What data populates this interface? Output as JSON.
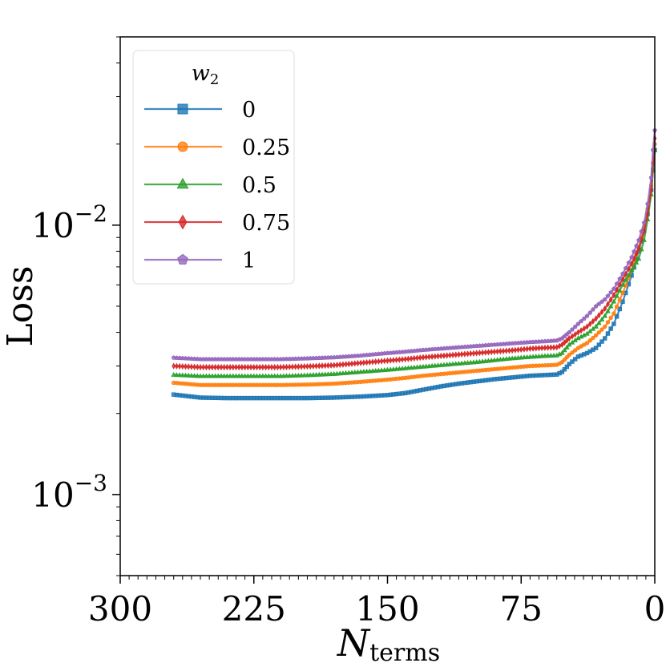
{
  "chart_data": {
    "type": "line",
    "title": "",
    "xlabel": "N",
    "xlabel_subscript": "terms",
    "ylabel": "Loss",
    "yscale": "log",
    "ylim": [
      0.0005,
      0.05
    ],
    "xlim": [
      300,
      0
    ],
    "x_inverted": true,
    "x_ticks": [
      {
        "value": 300,
        "label": "300"
      },
      {
        "value": 225,
        "label": "225"
      },
      {
        "value": 150,
        "label": "150"
      },
      {
        "value": 75,
        "label": "75"
      },
      {
        "value": 0,
        "label": "0"
      }
    ],
    "y_ticks": [
      {
        "value": 0.01,
        "base": "10",
        "exp": "−2"
      },
      {
        "value": 0.001,
        "base": "10",
        "exp": "−3"
      }
    ],
    "legend": {
      "title": "w",
      "title_subscript": "2",
      "position": "top-left"
    },
    "series": [
      {
        "name": "0",
        "color": "#1f77b4",
        "marker": "square",
        "points": [
          [
            270,
            0.00235
          ],
          [
            255,
            0.00229
          ],
          [
            240,
            0.00228
          ],
          [
            225,
            0.00228
          ],
          [
            210,
            0.00228
          ],
          [
            195,
            0.00228
          ],
          [
            180,
            0.00229
          ],
          [
            165,
            0.00231
          ],
          [
            150,
            0.00234
          ],
          [
            140,
            0.00238
          ],
          [
            130,
            0.00245
          ],
          [
            120,
            0.00252
          ],
          [
            110,
            0.00258
          ],
          [
            100,
            0.00263
          ],
          [
            90,
            0.00268
          ],
          [
            80,
            0.00272
          ],
          [
            70,
            0.00276
          ],
          [
            60,
            0.00278
          ],
          [
            55,
            0.00279
          ],
          [
            52,
            0.00285
          ],
          [
            48,
            0.00305
          ],
          [
            43,
            0.00325
          ],
          [
            38,
            0.00335
          ],
          [
            33,
            0.0035
          ],
          [
            28,
            0.0038
          ],
          [
            23,
            0.0043
          ],
          [
            18,
            0.0052
          ],
          [
            13,
            0.0065
          ],
          [
            9,
            0.008
          ],
          [
            6,
            0.0095
          ],
          [
            4,
            0.011
          ],
          [
            2,
            0.0135
          ],
          [
            1,
            0.016
          ],
          [
            0,
            0.019
          ]
        ]
      },
      {
        "name": "0.25",
        "color": "#ff7f0e",
        "marker": "circle",
        "points": [
          [
            270,
            0.0026
          ],
          [
            255,
            0.00255
          ],
          [
            240,
            0.00255
          ],
          [
            225,
            0.00255
          ],
          [
            210,
            0.00255
          ],
          [
            195,
            0.00256
          ],
          [
            180,
            0.00258
          ],
          [
            165,
            0.00262
          ],
          [
            150,
            0.00267
          ],
          [
            140,
            0.00271
          ],
          [
            130,
            0.00276
          ],
          [
            120,
            0.0028
          ],
          [
            110,
            0.00284
          ],
          [
            100,
            0.00288
          ],
          [
            90,
            0.00292
          ],
          [
            80,
            0.00296
          ],
          [
            70,
            0.003
          ],
          [
            60,
            0.00302
          ],
          [
            55,
            0.00303
          ],
          [
            52,
            0.0031
          ],
          [
            48,
            0.0033
          ],
          [
            43,
            0.0035
          ],
          [
            38,
            0.00365
          ],
          [
            33,
            0.0039
          ],
          [
            28,
            0.0042
          ],
          [
            23,
            0.0047
          ],
          [
            18,
            0.0056
          ],
          [
            13,
            0.0068
          ],
          [
            9,
            0.0083
          ],
          [
            6,
            0.0098
          ],
          [
            4,
            0.0115
          ],
          [
            2,
            0.014
          ],
          [
            1,
            0.017
          ],
          [
            0,
            0.02
          ]
        ]
      },
      {
        "name": "0.5",
        "color": "#2ca02c",
        "marker": "triangle",
        "points": [
          [
            270,
            0.00278
          ],
          [
            255,
            0.00275
          ],
          [
            240,
            0.00275
          ],
          [
            225,
            0.00275
          ],
          [
            210,
            0.00275
          ],
          [
            195,
            0.00277
          ],
          [
            180,
            0.0028
          ],
          [
            165,
            0.00285
          ],
          [
            150,
            0.0029
          ],
          [
            140,
            0.00294
          ],
          [
            130,
            0.00298
          ],
          [
            120,
            0.00302
          ],
          [
            110,
            0.00306
          ],
          [
            100,
            0.0031
          ],
          [
            90,
            0.00315
          ],
          [
            80,
            0.0032
          ],
          [
            70,
            0.00324
          ],
          [
            60,
            0.00327
          ],
          [
            55,
            0.00328
          ],
          [
            52,
            0.00335
          ],
          [
            48,
            0.0036
          ],
          [
            43,
            0.0038
          ],
          [
            38,
            0.00395
          ],
          [
            33,
            0.0042
          ],
          [
            28,
            0.0046
          ],
          [
            23,
            0.0052
          ],
          [
            18,
            0.006
          ],
          [
            13,
            0.0068
          ],
          [
            9,
            0.0075
          ],
          [
            6,
            0.0088
          ],
          [
            4,
            0.0105
          ],
          [
            2,
            0.013
          ],
          [
            1,
            0.016
          ],
          [
            0,
            0.019
          ]
        ]
      },
      {
        "name": "0.75",
        "color": "#d62728",
        "marker": "diamond",
        "points": [
          [
            270,
            0.003
          ],
          [
            255,
            0.00297
          ],
          [
            240,
            0.00297
          ],
          [
            225,
            0.00297
          ],
          [
            210,
            0.00297
          ],
          [
            195,
            0.00299
          ],
          [
            180,
            0.00302
          ],
          [
            165,
            0.00308
          ],
          [
            150,
            0.00314
          ],
          [
            140,
            0.00318
          ],
          [
            130,
            0.00323
          ],
          [
            120,
            0.00327
          ],
          [
            110,
            0.00331
          ],
          [
            100,
            0.00335
          ],
          [
            90,
            0.00339
          ],
          [
            80,
            0.00343
          ],
          [
            70,
            0.00348
          ],
          [
            60,
            0.00351
          ],
          [
            55,
            0.00352
          ],
          [
            52,
            0.0036
          ],
          [
            48,
            0.0038
          ],
          [
            43,
            0.004
          ],
          [
            38,
            0.0042
          ],
          [
            33,
            0.0045
          ],
          [
            28,
            0.0049
          ],
          [
            23,
            0.0055
          ],
          [
            18,
            0.0063
          ],
          [
            13,
            0.0072
          ],
          [
            9,
            0.0082
          ],
          [
            6,
            0.0095
          ],
          [
            4,
            0.011
          ],
          [
            2,
            0.0135
          ],
          [
            1,
            0.017
          ],
          [
            0,
            0.021
          ]
        ]
      },
      {
        "name": "1",
        "color": "#9467bd",
        "marker": "pentagon",
        "points": [
          [
            270,
            0.00322
          ],
          [
            255,
            0.00318
          ],
          [
            240,
            0.00318
          ],
          [
            225,
            0.00318
          ],
          [
            210,
            0.00318
          ],
          [
            195,
            0.0032
          ],
          [
            180,
            0.00323
          ],
          [
            165,
            0.00328
          ],
          [
            150,
            0.00335
          ],
          [
            140,
            0.00339
          ],
          [
            130,
            0.00344
          ],
          [
            120,
            0.00348
          ],
          [
            110,
            0.00352
          ],
          [
            100,
            0.00356
          ],
          [
            90,
            0.0036
          ],
          [
            80,
            0.00364
          ],
          [
            70,
            0.00368
          ],
          [
            60,
            0.00371
          ],
          [
            55,
            0.00373
          ],
          [
            52,
            0.0038
          ],
          [
            48,
            0.004
          ],
          [
            43,
            0.0043
          ],
          [
            38,
            0.0046
          ],
          [
            33,
            0.005
          ],
          [
            28,
            0.0053
          ],
          [
            23,
            0.0058
          ],
          [
            18,
            0.0066
          ],
          [
            13,
            0.0076
          ],
          [
            9,
            0.0088
          ],
          [
            6,
            0.0102
          ],
          [
            4,
            0.012
          ],
          [
            2,
            0.015
          ],
          [
            1,
            0.019
          ],
          [
            0,
            0.0225
          ]
        ]
      }
    ]
  }
}
